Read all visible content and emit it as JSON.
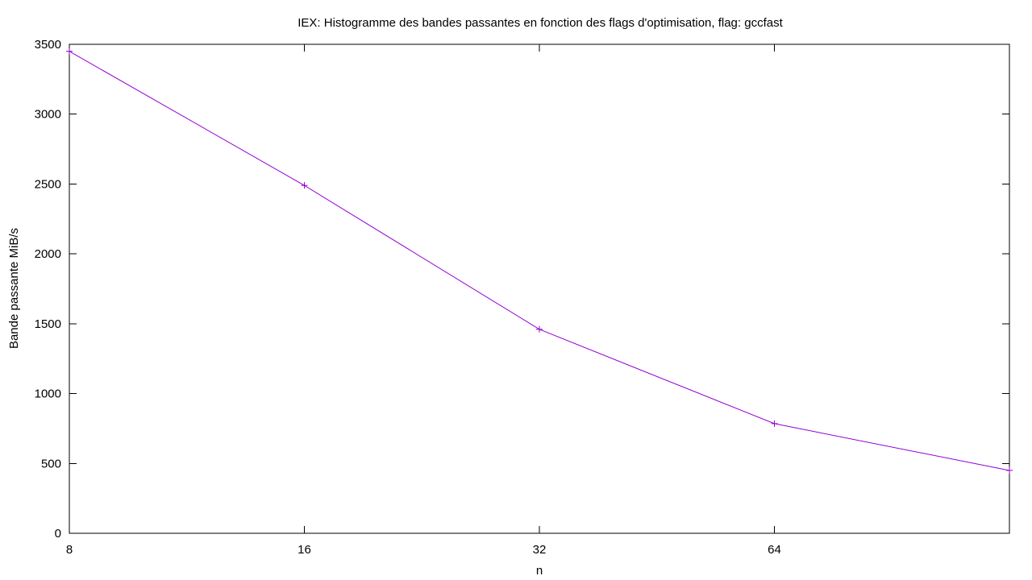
{
  "chart_data": {
    "type": "line",
    "title": "IEX: Histogramme des bandes passantes en fonction des flags d'optimisation, flag: gccfast",
    "xlabel": "n",
    "ylabel": "Bande passante MiB/s",
    "x_scale": "log2",
    "x_ticks": [
      8,
      16,
      32,
      64
    ],
    "xlim": [
      8,
      128
    ],
    "ylim": [
      0,
      3500
    ],
    "y_ticks": [
      0,
      500,
      1000,
      1500,
      2000,
      2500,
      3000,
      3500
    ],
    "grid": false,
    "legend": "none",
    "series": [
      {
        "color": "#9400d3",
        "marker": "plus",
        "x": [
          8,
          16,
          32,
          64,
          128
        ],
        "values": [
          3450,
          2490,
          1460,
          785,
          450
        ]
      }
    ]
  }
}
